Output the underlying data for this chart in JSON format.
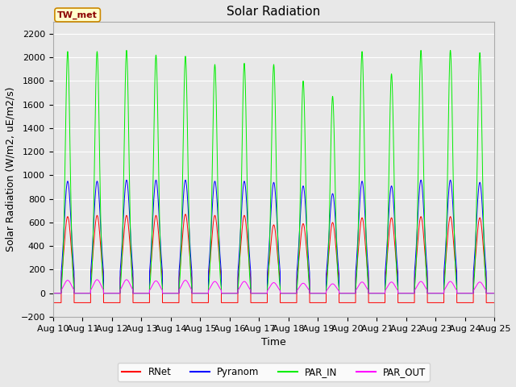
{
  "title": "Solar Radiation",
  "ylabel": "Solar Radiation (W/m2, uE/m2/s)",
  "xlabel": "Time",
  "site_label": "TW_met",
  "ylim": [
    -200,
    2300
  ],
  "yticks": [
    -200,
    0,
    200,
    400,
    600,
    800,
    1000,
    1200,
    1400,
    1600,
    1800,
    2000,
    2200
  ],
  "num_days": 15,
  "colors": {
    "RNet": "#ff0000",
    "Pyranom": "#0000ff",
    "PAR_IN": "#00ee00",
    "PAR_OUT": "#ff00ff"
  },
  "fig_bg": "#e8e8e8",
  "plot_bg": "#e8e8e8",
  "grid_color": "#ffffff",
  "title_fontsize": 11,
  "label_fontsize": 9,
  "tick_fontsize": 8,
  "par_in_peaks": [
    2050,
    2050,
    2060,
    2020,
    2010,
    1940,
    1950,
    1940,
    1800,
    1670,
    2050,
    1860,
    2060,
    2060,
    2040
  ],
  "pyranom_peaks": [
    950,
    950,
    960,
    960,
    960,
    950,
    950,
    940,
    910,
    845,
    950,
    910,
    960,
    960,
    940
  ],
  "rnet_peaks": [
    650,
    660,
    660,
    660,
    670,
    660,
    660,
    580,
    590,
    600,
    640,
    640,
    650,
    650,
    640
  ],
  "par_out_peaks": [
    110,
    115,
    115,
    105,
    110,
    100,
    100,
    90,
    85,
    80,
    95,
    95,
    100,
    100,
    95
  ],
  "night_rnet": -80,
  "night_par_out": -10
}
